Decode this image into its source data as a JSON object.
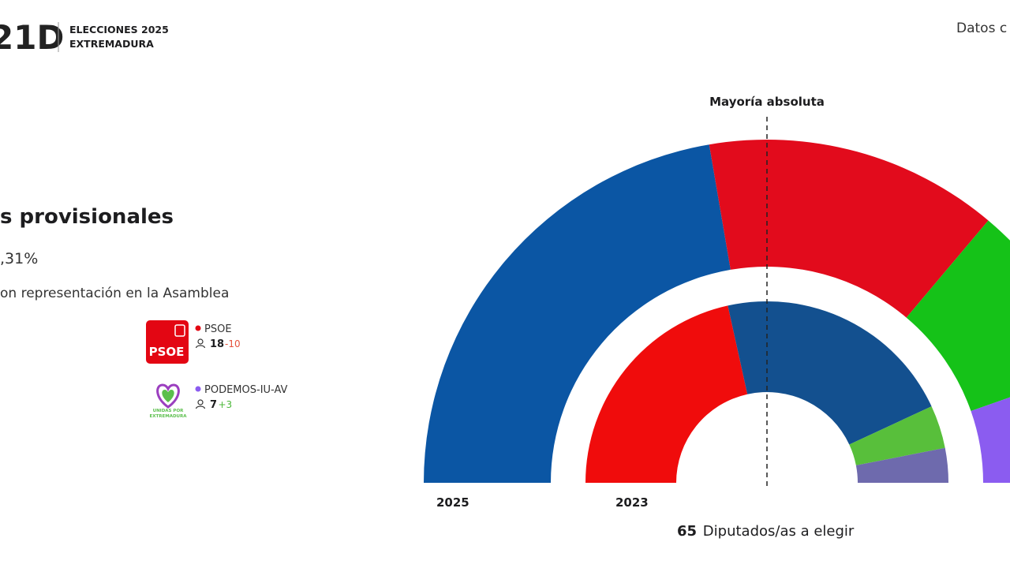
{
  "header": {
    "logo": "21D",
    "title_lines": [
      "ELECCIONES 2025",
      "EXTREMADURA"
    ],
    "source": "Datos c"
  },
  "summary": {
    "title": "s provisionales",
    "percent": ",31%",
    "subtitle": "on representación en la Asamblea"
  },
  "legend": [
    {
      "logo": "PSOE",
      "name": "PSOE",
      "color": "#e30613",
      "seats": 18,
      "change": -10
    },
    {
      "logo": [
        "UNIDAS POR",
        "EXTREMADURA"
      ],
      "name": "PODEMOS-IU-AV",
      "color": "#8b5cf0",
      "seats": 7,
      "change": {
        "value": 3,
        "label": "+3"
      }
    }
  ],
  "hemicycle": {
    "majority_label": "Mayoría absoluta",
    "total_seats": 65,
    "total_label": "Diputados/as a elegir",
    "rings": [
      {
        "label": "2025",
        "segments": [
          {
            "color": "#0b56a4",
            "seats": 29
          },
          {
            "color": "#e20b1c",
            "seats": 18
          },
          {
            "color": "#15c218",
            "seats": 11
          },
          {
            "color": "#8b5cf0",
            "seats": 7
          }
        ]
      },
      {
        "label": "2023",
        "segments": [
          {
            "color": "#f00c0c",
            "seats": 28
          },
          {
            "color": "#13508f",
            "seats": 28
          },
          {
            "color": "#58bf3b",
            "seats": 5
          },
          {
            "color": "#6e6aad",
            "seats": 4
          }
        ]
      }
    ]
  }
}
